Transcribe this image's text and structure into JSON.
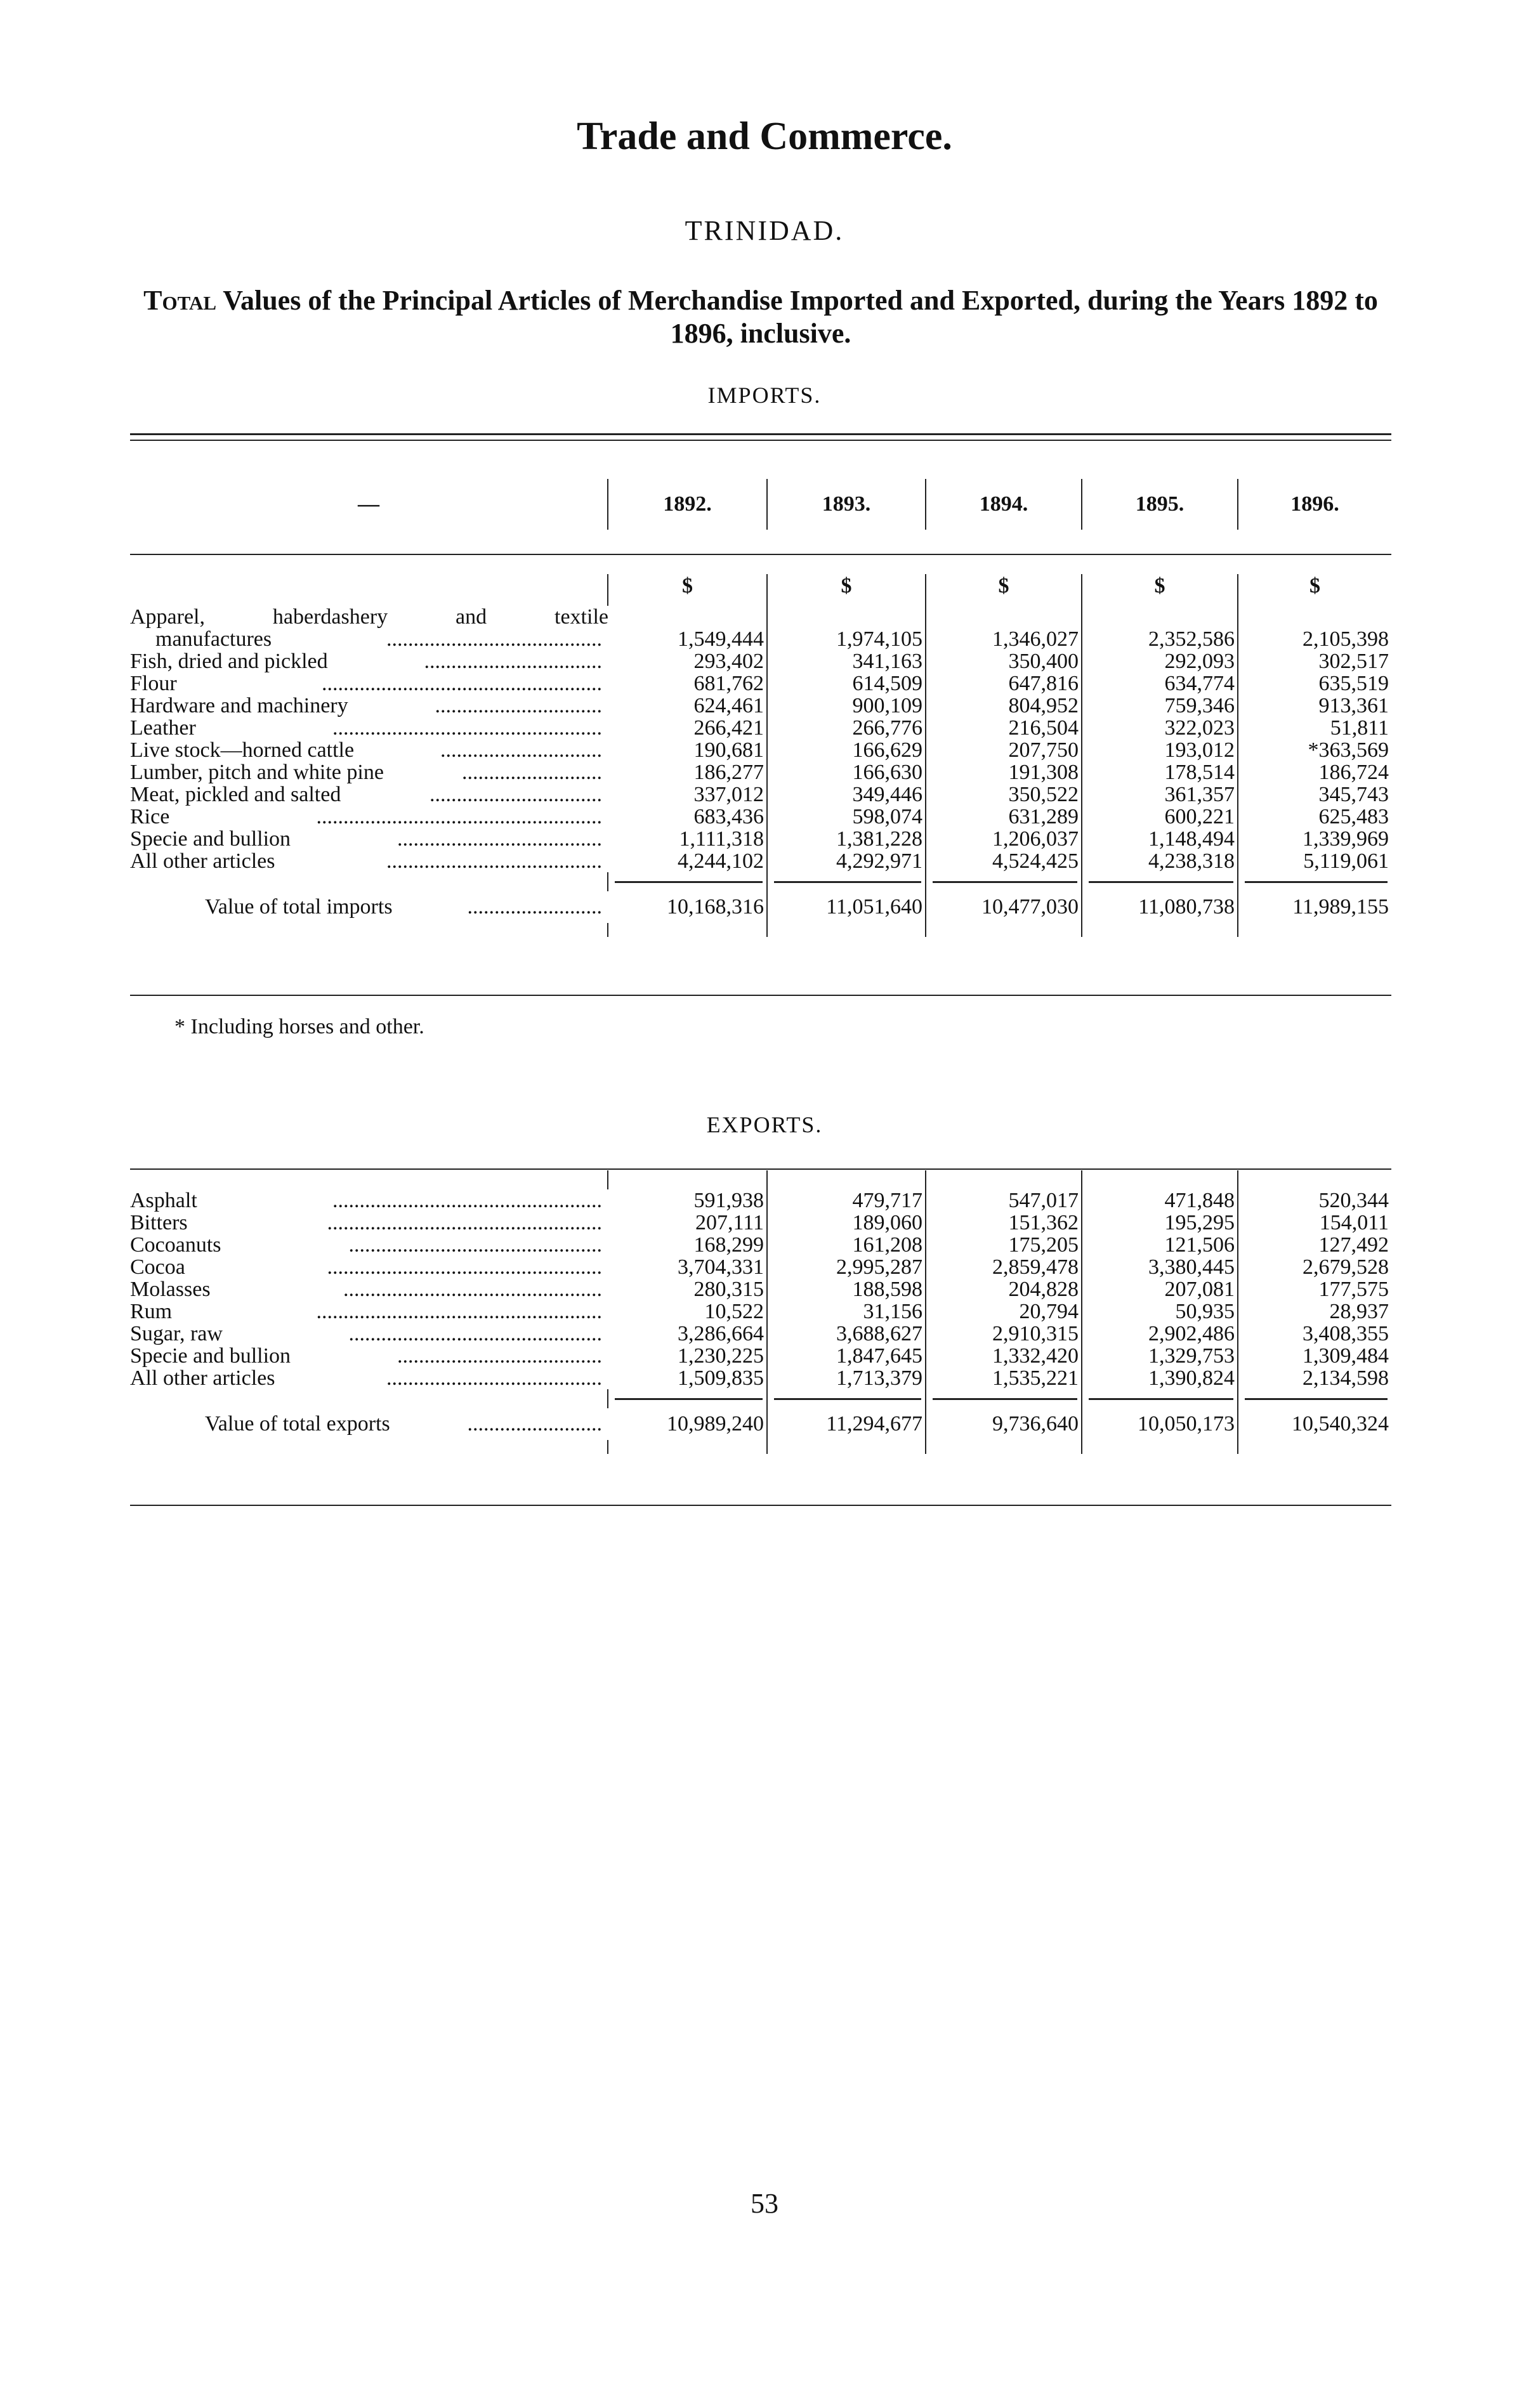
{
  "title": "Trade and Commerce.",
  "country": "TRINIDAD.",
  "subtitle_lead": "Total",
  "subtitle_rest": "Values of the Principal Articles of Merchandise Imported and Exported, during the Years 1892 to 1896, inclusive.",
  "imports": {
    "heading": "IMPORTS.",
    "corner": "—",
    "years": [
      "1892.",
      "1893.",
      "1894.",
      "1895.",
      "1896."
    ],
    "currency": "$",
    "rows": [
      {
        "label": "Apparel, haberdashery and textile",
        "values": [
          "",
          "",
          "",
          "",
          ""
        ]
      },
      {
        "label": "manufactures",
        "values": [
          "1,549,444",
          "1,974,105",
          "1,346,027",
          "2,352,586",
          "2,105,398"
        ]
      },
      {
        "label": "Fish, dried and pickled",
        "values": [
          "293,402",
          "341,163",
          "350,400",
          "292,093",
          "302,517"
        ]
      },
      {
        "label": "Flour",
        "values": [
          "681,762",
          "614,509",
          "647,816",
          "634,774",
          "635,519"
        ]
      },
      {
        "label": "Hardware and machinery",
        "values": [
          "624,461",
          "900,109",
          "804,952",
          "759,346",
          "913,361"
        ]
      },
      {
        "label": "Leather",
        "values": [
          "266,421",
          "266,776",
          "216,504",
          "322,023",
          "51,811"
        ]
      },
      {
        "label": "Live stock—horned cattle",
        "values": [
          "190,681",
          "166,629",
          "207,750",
          "193,012",
          "*363,569"
        ]
      },
      {
        "label": "Lumber, pitch and white pine",
        "values": [
          "186,277",
          "166,630",
          "191,308",
          "178,514",
          "186,724"
        ]
      },
      {
        "label": "Meat, pickled and salted",
        "values": [
          "337,012",
          "349,446",
          "350,522",
          "361,357",
          "345,743"
        ]
      },
      {
        "label": "Rice",
        "values": [
          "683,436",
          "598,074",
          "631,289",
          "600,221",
          "625,483"
        ]
      },
      {
        "label": "Specie and bullion",
        "values": [
          "1,111,318",
          "1,381,228",
          "1,206,037",
          "1,148,494",
          "1,339,969"
        ]
      },
      {
        "label": "All other articles",
        "values": [
          "4,244,102",
          "4,292,971",
          "4,524,425",
          "4,238,318",
          "5,119,061"
        ]
      }
    ],
    "total": {
      "label": "Value of total imports",
      "values": [
        "10,168,316",
        "11,051,640",
        "10,477,030",
        "11,080,738",
        "11,989,155"
      ]
    },
    "footnote": "* Including horses and other."
  },
  "exports": {
    "heading": "EXPORTS.",
    "rows": [
      {
        "label": "Asphalt",
        "values": [
          "591,938",
          "479,717",
          "547,017",
          "471,848",
          "520,344"
        ]
      },
      {
        "label": "Bitters",
        "values": [
          "207,111",
          "189,060",
          "151,362",
          "195,295",
          "154,011"
        ]
      },
      {
        "label": "Cocoanuts",
        "values": [
          "168,299",
          "161,208",
          "175,205",
          "121,506",
          "127,492"
        ]
      },
      {
        "label": "Cocoa",
        "values": [
          "3,704,331",
          "2,995,287",
          "2,859,478",
          "3,380,445",
          "2,679,528"
        ]
      },
      {
        "label": "Molasses",
        "values": [
          "280,315",
          "188,598",
          "204,828",
          "207,081",
          "177,575"
        ]
      },
      {
        "label": "Rum",
        "values": [
          "10,522",
          "31,156",
          "20,794",
          "50,935",
          "28,937"
        ]
      },
      {
        "label": "Sugar, raw",
        "values": [
          "3,286,664",
          "3,688,627",
          "2,910,315",
          "2,902,486",
          "3,408,355"
        ]
      },
      {
        "label": "Specie and bullion",
        "values": [
          "1,230,225",
          "1,847,645",
          "1,332,420",
          "1,329,753",
          "1,309,484"
        ]
      },
      {
        "label": "All other articles",
        "values": [
          "1,509,835",
          "1,713,379",
          "1,535,221",
          "1,390,824",
          "2,134,598"
        ]
      }
    ],
    "total": {
      "label": "Value of total exports",
      "values": [
        "10,989,240",
        "11,294,677",
        "9,736,640",
        "10,050,173",
        "10,540,324"
      ]
    }
  },
  "page_number": "53"
}
